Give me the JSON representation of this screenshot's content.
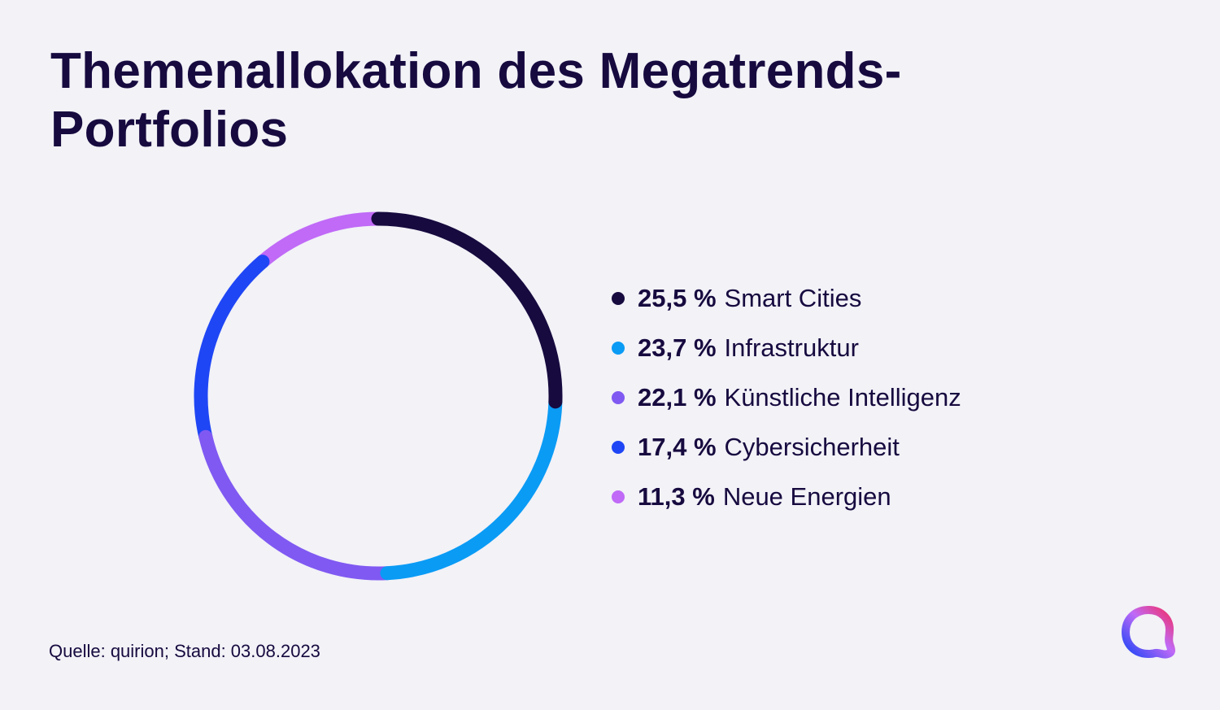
{
  "title": {
    "line1": "Themenallokation des Megatrends-",
    "line2": "Portfolios"
  },
  "chart_data": {
    "type": "pie",
    "style": "donut",
    "categories": [
      "Smart Cities",
      "Infrastruktur",
      "Künstliche Intelligenz",
      "Cybersicherheit",
      "Neue Energien"
    ],
    "values": [
      25.5,
      23.7,
      22.1,
      17.4,
      11.3
    ],
    "value_labels": [
      "25,5 %",
      "23,7 %",
      "22,1 %",
      "17,4 %",
      "11,3 %"
    ],
    "colors": [
      "#170a3f",
      "#0a9bf5",
      "#8059f2",
      "#1f46f5",
      "#c06af7"
    ],
    "legend_position": "right"
  },
  "source": "Quelle: quirion; Stand: 03.08.2023",
  "logo": {
    "icon": "quirion-logo-icon",
    "colors": [
      "#1f46f5",
      "#c06af7",
      "#f0306a"
    ]
  }
}
